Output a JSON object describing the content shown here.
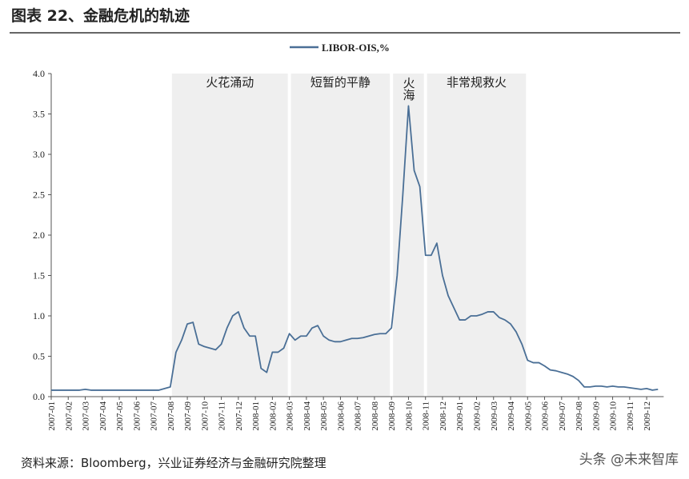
{
  "chart_data": {
    "type": "line",
    "title": "图表 22、金融危机的轨迹",
    "source": "资料来源：Bloomberg，兴业证券经济与金融研究院整理",
    "watermark": "头条 @未来智库",
    "x": [
      "2007-01",
      null,
      null,
      "2007-02",
      null,
      null,
      "2007-03",
      null,
      null,
      "2007-04",
      null,
      null,
      "2007-05",
      null,
      null,
      "2007-06",
      null,
      null,
      "2007-07",
      null,
      null,
      "2007-08",
      null,
      null,
      "2007-09",
      null,
      null,
      "2007-10",
      null,
      null,
      "2007-11",
      null,
      null,
      "2007-12",
      null,
      null,
      "2008-01",
      null,
      null,
      "2008-02",
      null,
      null,
      "2008-03",
      null,
      null,
      "2008-04",
      null,
      null,
      "2008-05",
      null,
      null,
      "2008-06",
      null,
      null,
      "2008-07",
      null,
      null,
      "2008-08",
      null,
      null,
      "2008-09",
      null,
      null,
      "2008-10",
      null,
      null,
      "2008-11",
      null,
      null,
      "2008-12",
      null,
      null,
      "2009-01",
      null,
      null,
      "2009-02",
      null,
      null,
      "2009-03",
      null,
      null,
      "2009-04",
      null,
      null,
      "2009-05",
      null,
      null,
      "2009-06",
      null,
      null,
      "2009-07",
      null,
      null,
      "2009-08",
      null,
      null,
      "2009-09",
      null,
      null,
      "2009-10",
      null,
      null,
      "2009-11",
      null,
      null,
      "2009-12",
      null,
      null
    ],
    "series": [
      {
        "name": "LIBOR-OIS,%",
        "color": "#4a6f96",
        "values": [
          0.08,
          0.08,
          0.08,
          0.08,
          0.08,
          0.08,
          0.09,
          0.08,
          0.08,
          0.08,
          0.08,
          0.08,
          0.08,
          0.08,
          0.08,
          0.08,
          0.08,
          0.08,
          0.08,
          0.08,
          0.1,
          0.12,
          0.55,
          0.7,
          0.9,
          0.92,
          0.65,
          0.62,
          0.6,
          0.58,
          0.65,
          0.85,
          1.0,
          1.05,
          0.85,
          0.75,
          0.75,
          0.35,
          0.3,
          0.55,
          0.55,
          0.6,
          0.78,
          0.7,
          0.75,
          0.75,
          0.85,
          0.88,
          0.75,
          0.7,
          0.68,
          0.68,
          0.7,
          0.72,
          0.72,
          0.73,
          0.75,
          0.77,
          0.78,
          0.78,
          0.85,
          1.5,
          2.5,
          3.6,
          2.8,
          2.6,
          1.75,
          1.75,
          1.9,
          1.5,
          1.25,
          1.1,
          0.95,
          0.95,
          1.0,
          1.0,
          1.02,
          1.05,
          1.05,
          0.98,
          0.95,
          0.9,
          0.8,
          0.65,
          0.45,
          0.42,
          0.42,
          0.38,
          0.33,
          0.32,
          0.3,
          0.28,
          0.25,
          0.2,
          0.12,
          0.12,
          0.13,
          0.13,
          0.12,
          0.13,
          0.12,
          0.12,
          0.11,
          0.1,
          0.09,
          0.1,
          0.08,
          0.09
        ]
      }
    ],
    "regions": [
      {
        "label": "火花涌动",
        "from": "2007-08",
        "to": "2008-03"
      },
      {
        "label": "短暂的平静",
        "from": "2008-03",
        "to": "2008-09"
      },
      {
        "label": "火海",
        "from": "2008-09",
        "to": "2008-11",
        "vertical": true
      },
      {
        "label": "非常规救火",
        "from": "2008-11",
        "to": "2009-05"
      }
    ],
    "ylim": [
      0,
      4
    ],
    "yticks": [
      {
        "value": 0,
        "label": "0.0"
      },
      0.5,
      {
        "value": 1,
        "label": "1.0"
      },
      1.5,
      {
        "value": 2,
        "label": "2.0"
      },
      2.5,
      {
        "value": 3,
        "label": "3.0"
      },
      3.5,
      {
        "value": 4,
        "label": "4.0"
      }
    ],
    "grid": false
  }
}
